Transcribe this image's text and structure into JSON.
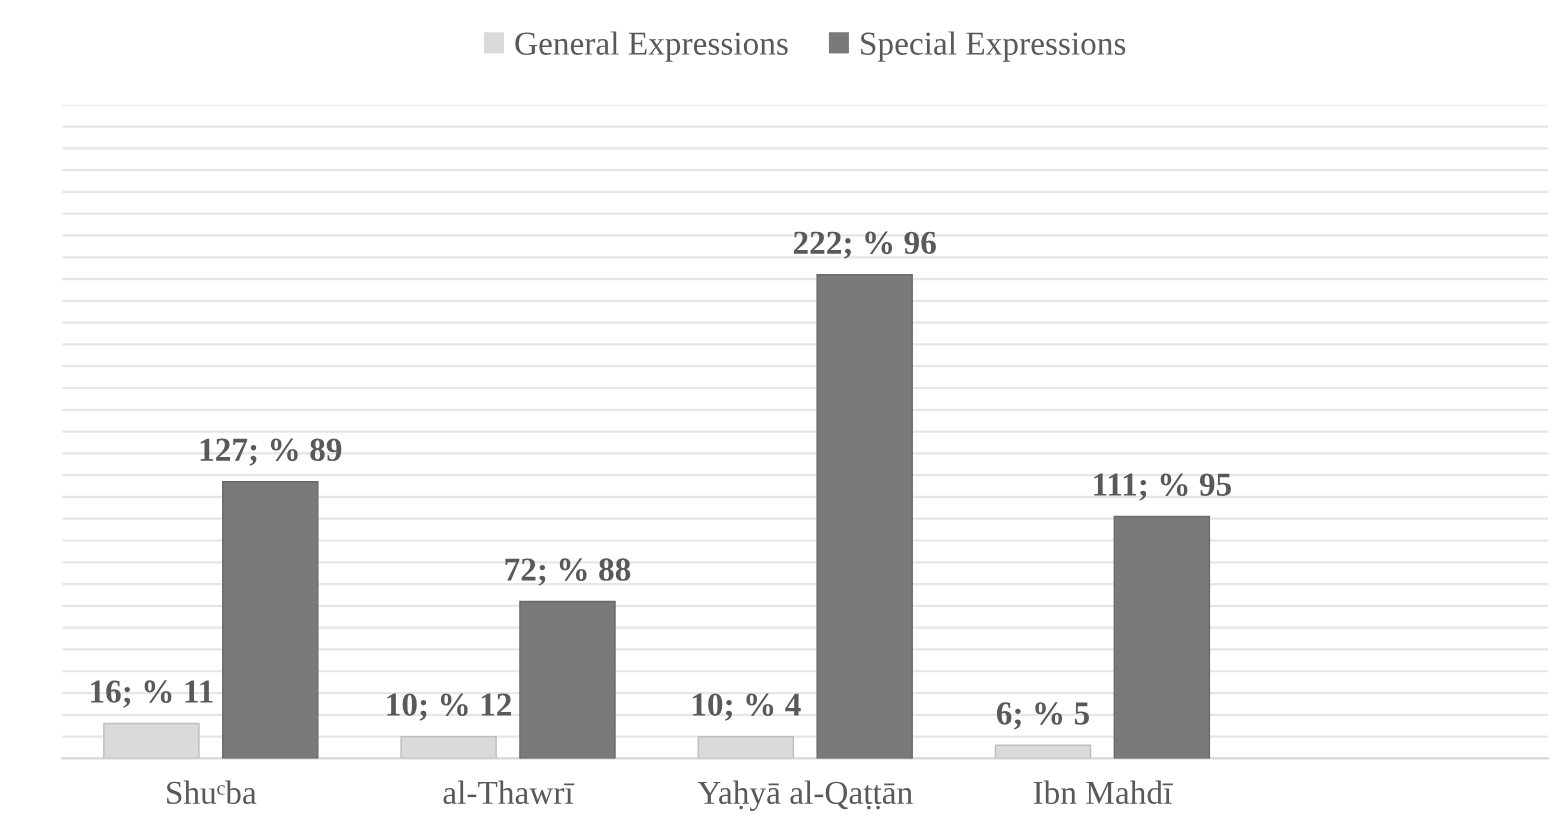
{
  "chart_data": {
    "type": "bar",
    "categories": [
      "Shuᶜba",
      "al-Thawrī",
      "Yaḥyā al-Qaṭṭān",
      "Ibn Mahdī",
      null
    ],
    "series": [
      {
        "name": "General Expressions",
        "color": "#dadada",
        "values": [
          16,
          10,
          10,
          6,
          null
        ],
        "value_labels": [
          "16; % 11",
          "10; % 12",
          "10; % 4",
          "6; % 5",
          null
        ]
      },
      {
        "name": "Special Expressions",
        "color": "#7a7a7a",
        "values": [
          127,
          72,
          222,
          111,
          null
        ],
        "value_labels": [
          "127; % 89",
          "72; % 88",
          "222; % 96",
          "111; % 95",
          null
        ]
      }
    ],
    "ylim": [
      0,
      300
    ],
    "yticks": [
      {
        "value": 0,
        "label": null
      },
      {
        "value": 10,
        "label": null
      },
      {
        "value": 20,
        "label": null
      },
      {
        "value": 30,
        "label": null
      },
      {
        "value": 40,
        "label": null
      },
      {
        "value": 50,
        "label": null
      },
      {
        "value": 60,
        "label": null
      },
      {
        "value": 70,
        "label": null
      },
      {
        "value": 80,
        "label": null
      },
      {
        "value": 90,
        "label": null
      },
      {
        "value": 100,
        "label": null
      },
      {
        "value": 110,
        "label": null
      },
      {
        "value": 120,
        "label": null
      },
      {
        "value": 130,
        "label": null
      },
      {
        "value": 140,
        "label": null
      },
      {
        "value": 150,
        "label": null
      },
      {
        "value": 160,
        "label": null
      },
      {
        "value": 170,
        "label": null
      },
      {
        "value": 180,
        "label": null
      },
      {
        "value": 190,
        "label": null
      },
      {
        "value": 200,
        "label": null
      },
      {
        "value": 210,
        "label": null
      },
      {
        "value": 220,
        "label": null
      },
      {
        "value": 230,
        "label": null
      },
      {
        "value": 240,
        "label": null
      },
      {
        "value": 250,
        "label": null
      },
      {
        "value": 260,
        "label": null
      },
      {
        "value": 270,
        "label": null
      },
      {
        "value": 280,
        "label": null
      },
      {
        "value": 290,
        "label": null
      },
      {
        "value": 300,
        "label": null
      }
    ],
    "tick_labels": "x",
    "grid": "y",
    "legend": "top"
  }
}
